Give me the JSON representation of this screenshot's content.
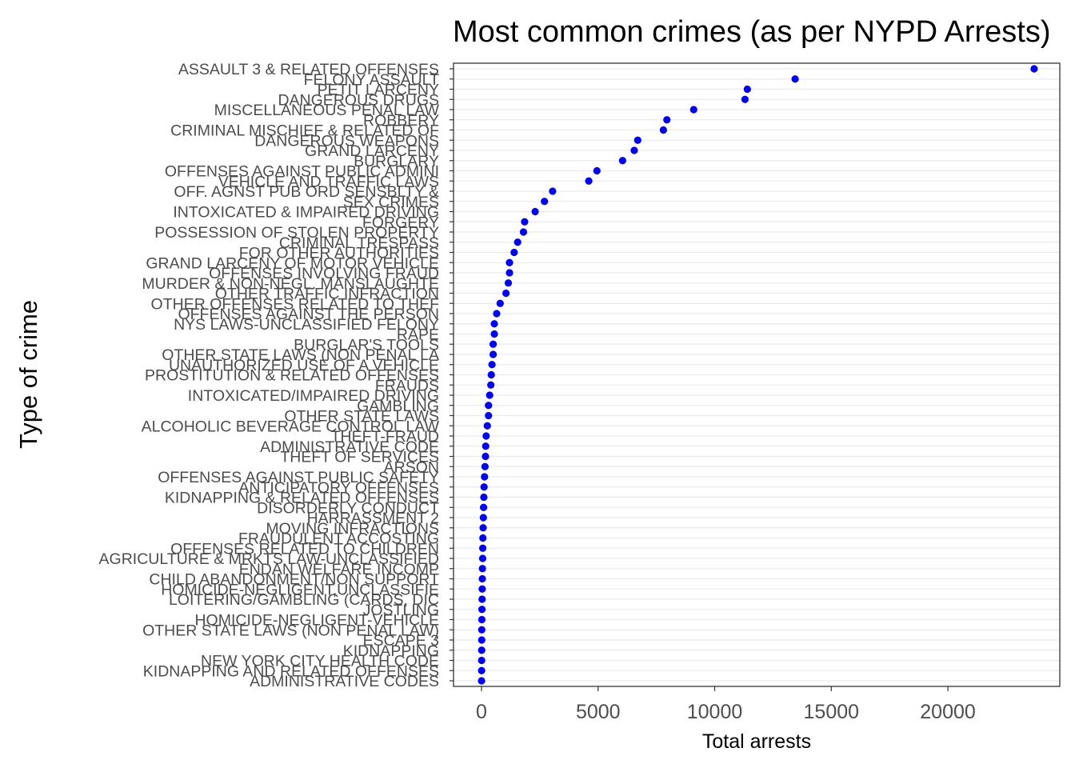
{
  "chart_data": {
    "type": "scatter",
    "title": "Most common crimes (as per NYPD Arrests)",
    "xlabel": "Total arrests",
    "ylabel": "Type of crime",
    "xlim": [
      -1200,
      24800
    ],
    "x_ticks": [
      0,
      5000,
      10000,
      15000,
      20000
    ],
    "grid": "horizontal major gridlines",
    "point_color": "#0000ff",
    "categories": [
      "ASSAULT 3 & RELATED OFFENSES",
      "FELONY ASSAULT",
      "PETIT LARCENY",
      "DANGEROUS DRUGS",
      "MISCELLANEOUS PENAL LAW",
      "ROBBERY",
      "CRIMINAL MISCHIEF & RELATED OF",
      "DANGEROUS WEAPONS",
      "GRAND LARCENY",
      "BURGLARY",
      "OFFENSES AGAINST PUBLIC ADMINI",
      "VEHICLE AND TRAFFIC LAWS",
      "OFF. AGNST PUB ORD SENSBLTY &",
      "SEX CRIMES",
      "INTOXICATED & IMPAIRED DRIVING",
      "FORGERY",
      "POSSESSION OF STOLEN PROPERTY",
      "CRIMINAL TRESPASS",
      "FOR OTHER AUTHORITIES",
      "GRAND LARCENY OF MOTOR VEHICLE",
      "OFFENSES INVOLVING FRAUD",
      "MURDER & NON-NEGL. MANSLAUGHTE",
      "OTHER TRAFFIC INFRACTION",
      "OTHER OFFENSES RELATED TO THEF",
      "OFFENSES AGAINST THE PERSON",
      "NYS LAWS-UNCLASSIFIED FELONY",
      "RAPE",
      "BURGLAR'S TOOLS",
      "OTHER STATE LAWS (NON PENAL LA",
      "UNAUTHORIZED USE OF A VEHICLE",
      "PROSTITUTION & RELATED OFFENSES",
      "FRAUDS",
      "INTOXICATED/IMPAIRED DRIVING",
      "GAMBLING",
      "OTHER STATE LAWS",
      "ALCOHOLIC BEVERAGE CONTROL LAW",
      "THEFT-FRAUD",
      "ADMINISTRATIVE CODE",
      "THEFT OF SERVICES",
      "ARSON",
      "OFFENSES AGAINST PUBLIC SAFETY",
      "ANTICIPATORY OFFENSES",
      "KIDNAPPING & RELATED OFFENSES",
      "DISORDERLY CONDUCT",
      "HARRASSMENT 2",
      "MOVING INFRACTIONS",
      "FRAUDULENT ACCOSTING",
      "OFFENSES RELATED TO CHILDREN",
      "AGRICULTURE & MRKTS LAW-UNCLASSIFIED",
      "ENDAN WELFARE INCOMP",
      "CHILD ABANDONMENT/NON SUPPORT",
      "HOMICIDE-NEGLIGENT,UNCLASSIFIE",
      "LOITERING/GAMBLING (CARDS, DIC",
      "JOSTLING",
      "HOMICIDE-NEGLIGENT-VEHICLE",
      "OTHER STATE LAWS (NON PENAL LAW)",
      "ESCAPE 3",
      "KIDNAPPING",
      "NEW YORK CITY HEALTH CODE",
      "KIDNAPPING AND RELATED OFFENSES",
      "ADMINISTRATIVE CODES"
    ],
    "values": [
      23700,
      13450,
      11400,
      11300,
      9100,
      7950,
      7800,
      6700,
      6550,
      6050,
      4950,
      4600,
      3050,
      2700,
      2300,
      1850,
      1800,
      1550,
      1400,
      1200,
      1200,
      1150,
      1050,
      800,
      650,
      550,
      550,
      500,
      500,
      450,
      420,
      400,
      350,
      300,
      300,
      250,
      200,
      180,
      170,
      150,
      130,
      110,
      100,
      90,
      80,
      70,
      60,
      55,
      50,
      40,
      35,
      30,
      25,
      20,
      15,
      12,
      10,
      8,
      6,
      4,
      2
    ]
  }
}
